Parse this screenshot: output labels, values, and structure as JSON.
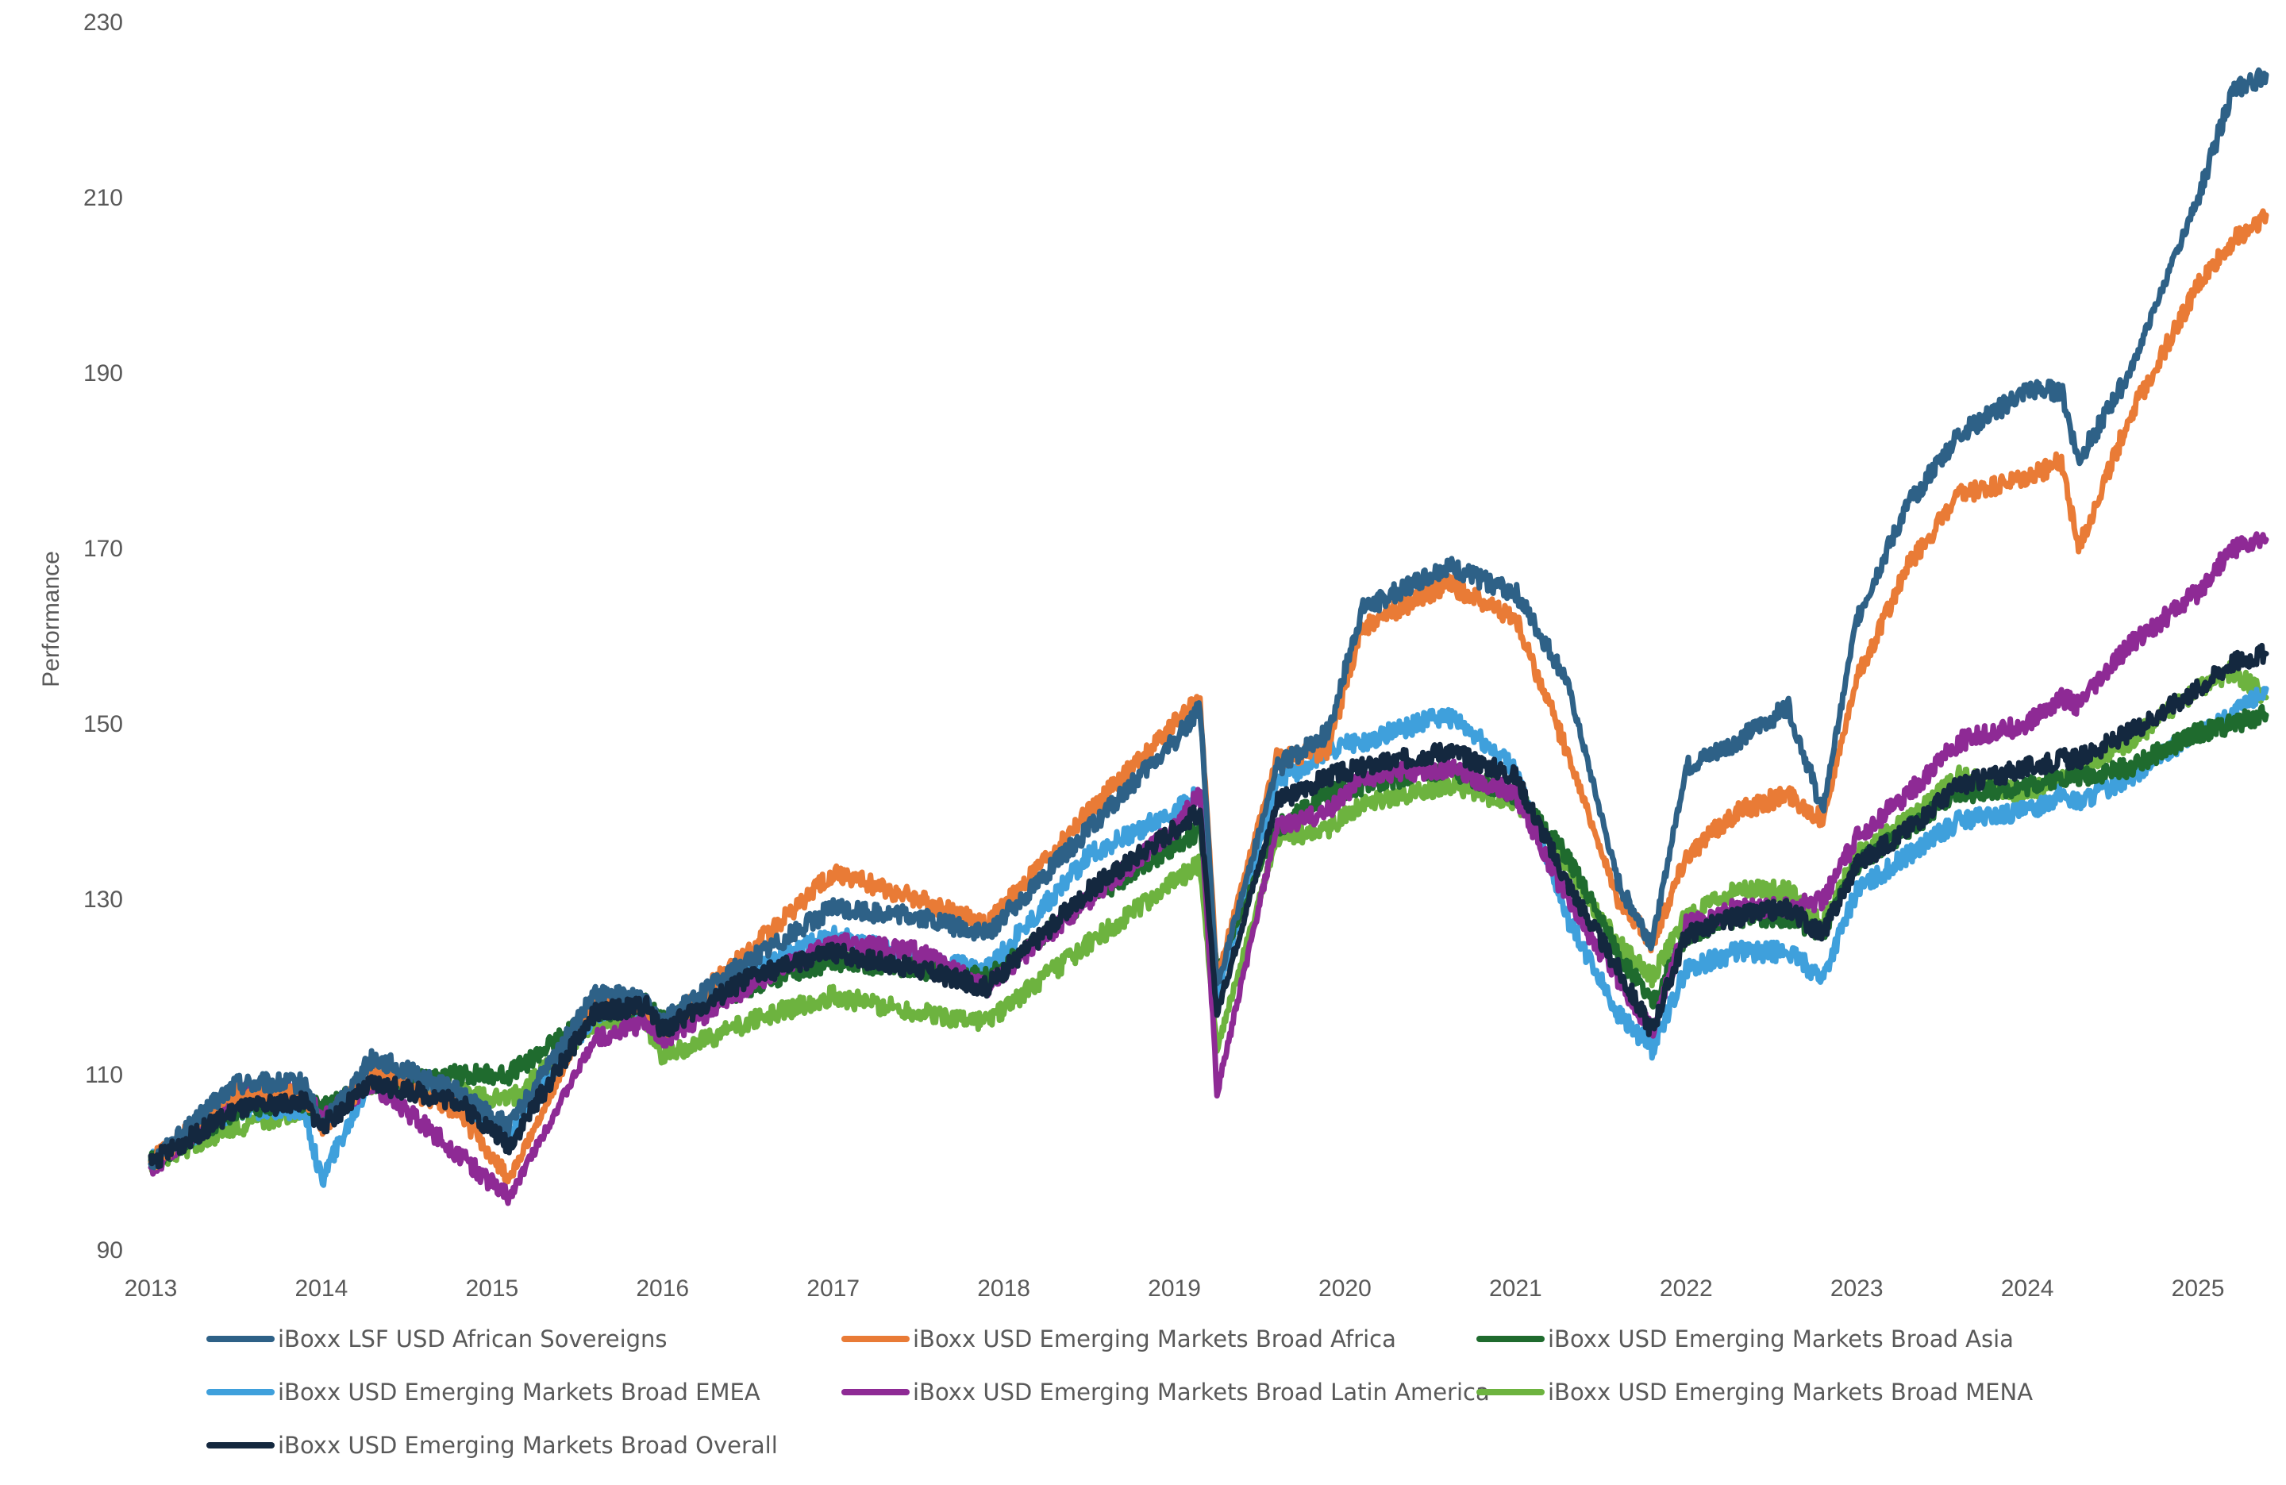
{
  "chart_data": {
    "type": "line",
    "title": "",
    "xlabel": "",
    "ylabel": "Performance",
    "ylim": [
      90,
      230
    ],
    "yticks": [
      "90",
      "110",
      "130",
      "150",
      "170",
      "190",
      "210",
      "230"
    ],
    "xlim": [
      2013.0,
      2025.4
    ],
    "xticks": [
      "2013",
      "2014",
      "2015",
      "2016",
      "2017",
      "2018",
      "2019",
      "2020",
      "2021",
      "2022",
      "2023",
      "2024",
      "2025"
    ],
    "grid": false,
    "legend_position": "bottom",
    "x": [
      2013.0,
      2013.5,
      2013.9,
      2014.0,
      2014.3,
      2014.8,
      2015.1,
      2015.6,
      2015.9,
      2016.0,
      2016.5,
      2017.0,
      2017.5,
      2017.9,
      2018.5,
      2019.0,
      2019.15,
      2019.25,
      2019.6,
      2019.9,
      2020.1,
      2020.6,
      2021.0,
      2021.3,
      2021.6,
      2021.8,
      2022.0,
      2022.3,
      2022.6,
      2022.8,
      2023.0,
      2023.3,
      2023.6,
      2024.0,
      2024.2,
      2024.3,
      2024.6,
      2025.0,
      2025.2,
      2025.4
    ],
    "series": [
      {
        "name": "iBoxx LSF USD African Sovereigns",
        "color": "#2E6187",
        "values": [
          100,
          109,
          109,
          104,
          112,
          108,
          104,
          119,
          119,
          116,
          123,
          129,
          128,
          126,
          138,
          148,
          152,
          120,
          145,
          149,
          163,
          168,
          165,
          155,
          132,
          125,
          145,
          148,
          152,
          140,
          162,
          175,
          183,
          188,
          188,
          180,
          190,
          210,
          222,
          224
        ]
      },
      {
        "name": "iBoxx USD Emerging Markets Broad Africa",
        "color": "#E97B36",
        "values": [
          100,
          108,
          108,
          104,
          110,
          106,
          98,
          118,
          118,
          115,
          124,
          133,
          130,
          127,
          140,
          150,
          153,
          121,
          146,
          147,
          161,
          166,
          162,
          147,
          130,
          125,
          135,
          140,
          142,
          139,
          155,
          168,
          176,
          178,
          180,
          170,
          185,
          200,
          205,
          208
        ]
      },
      {
        "name": "iBoxx USD Emerging Markets Broad Asia",
        "color": "#1F6B2E",
        "values": [
          100,
          106,
          107,
          106,
          109,
          110,
          110,
          117,
          118,
          116,
          120,
          123,
          122,
          121,
          130,
          136,
          138,
          122,
          138,
          142,
          143,
          145,
          142,
          135,
          124,
          118,
          126,
          128,
          128,
          126,
          134,
          138,
          142,
          143,
          144,
          144,
          145,
          149,
          150,
          151
        ]
      },
      {
        "name": "iBoxx USD Emerging Markets Broad EMEA",
        "color": "#3FA0DC",
        "values": [
          100,
          106,
          106,
          98,
          110,
          107,
          103,
          117,
          118,
          115,
          122,
          126,
          123,
          122,
          135,
          140,
          142,
          119,
          143,
          147,
          148,
          151,
          145,
          128,
          117,
          113,
          122,
          124,
          124,
          121,
          131,
          135,
          139,
          140,
          142,
          141,
          144,
          149,
          151,
          154
        ]
      },
      {
        "name": "iBoxx USD Emerging Markets Broad Latin America",
        "color": "#8E2A95",
        "values": [
          99,
          108,
          108,
          105,
          109,
          101,
          96,
          114,
          116,
          114,
          120,
          125,
          124,
          120,
          130,
          138,
          142,
          108,
          138,
          140,
          144,
          145,
          142,
          130,
          121,
          115,
          127,
          129,
          129,
          130,
          137,
          142,
          148,
          150,
          153,
          152,
          159,
          165,
          170,
          171
        ]
      },
      {
        "name": "iBoxx USD Emerging Markets Broad MENA",
        "color": "#6DB33F",
        "values": [
          100,
          104,
          106,
          105,
          109,
          108,
          107,
          116,
          116,
          112,
          116,
          119,
          117,
          116,
          125,
          132,
          134,
          113,
          137,
          138,
          141,
          143,
          141,
          134,
          125,
          121,
          128,
          131,
          131,
          127,
          135,
          139,
          144,
          142,
          144,
          145,
          148,
          154,
          156,
          153
        ]
      },
      {
        "name": "iBoxx USD Emerging Markets Broad Overall",
        "color": "#14283F",
        "values": [
          100,
          106,
          107,
          104,
          109,
          107,
          102,
          117,
          118,
          115,
          121,
          124,
          122,
          120,
          131,
          138,
          140,
          117,
          141,
          144,
          145,
          147,
          144,
          132,
          122,
          115,
          126,
          128,
          129,
          126,
          134,
          138,
          143,
          145,
          146,
          146,
          149,
          154,
          157,
          158
        ]
      }
    ]
  }
}
